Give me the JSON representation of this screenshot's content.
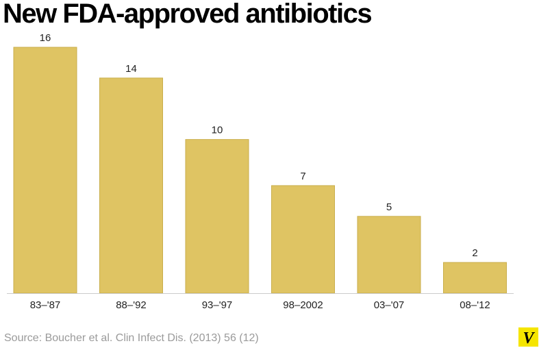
{
  "title": "New FDA-approved antibiotics",
  "source": "Source: Boucher et al. Clin Infect Dis. (2013) 56 (12)",
  "logo_letter": "V",
  "colors": {
    "bar": "#dfc463",
    "bar_edge": "#c9ae4b",
    "axis": "#cccccc",
    "logo_bg": "#f5e500"
  },
  "chart_data": {
    "type": "bar",
    "categories": [
      "83–'87",
      "88–'92",
      "93–'97",
      "98–2002",
      "03–'07",
      "08–'12"
    ],
    "values": [
      16,
      14,
      10,
      7,
      5,
      2
    ],
    "data_labels": [
      "16",
      "14",
      "10",
      "7",
      "5",
      "2"
    ],
    "title": "New FDA-approved antibiotics",
    "xlabel": "",
    "ylabel": "",
    "ylim": [
      0,
      16
    ],
    "grid": false,
    "legend": "none"
  }
}
